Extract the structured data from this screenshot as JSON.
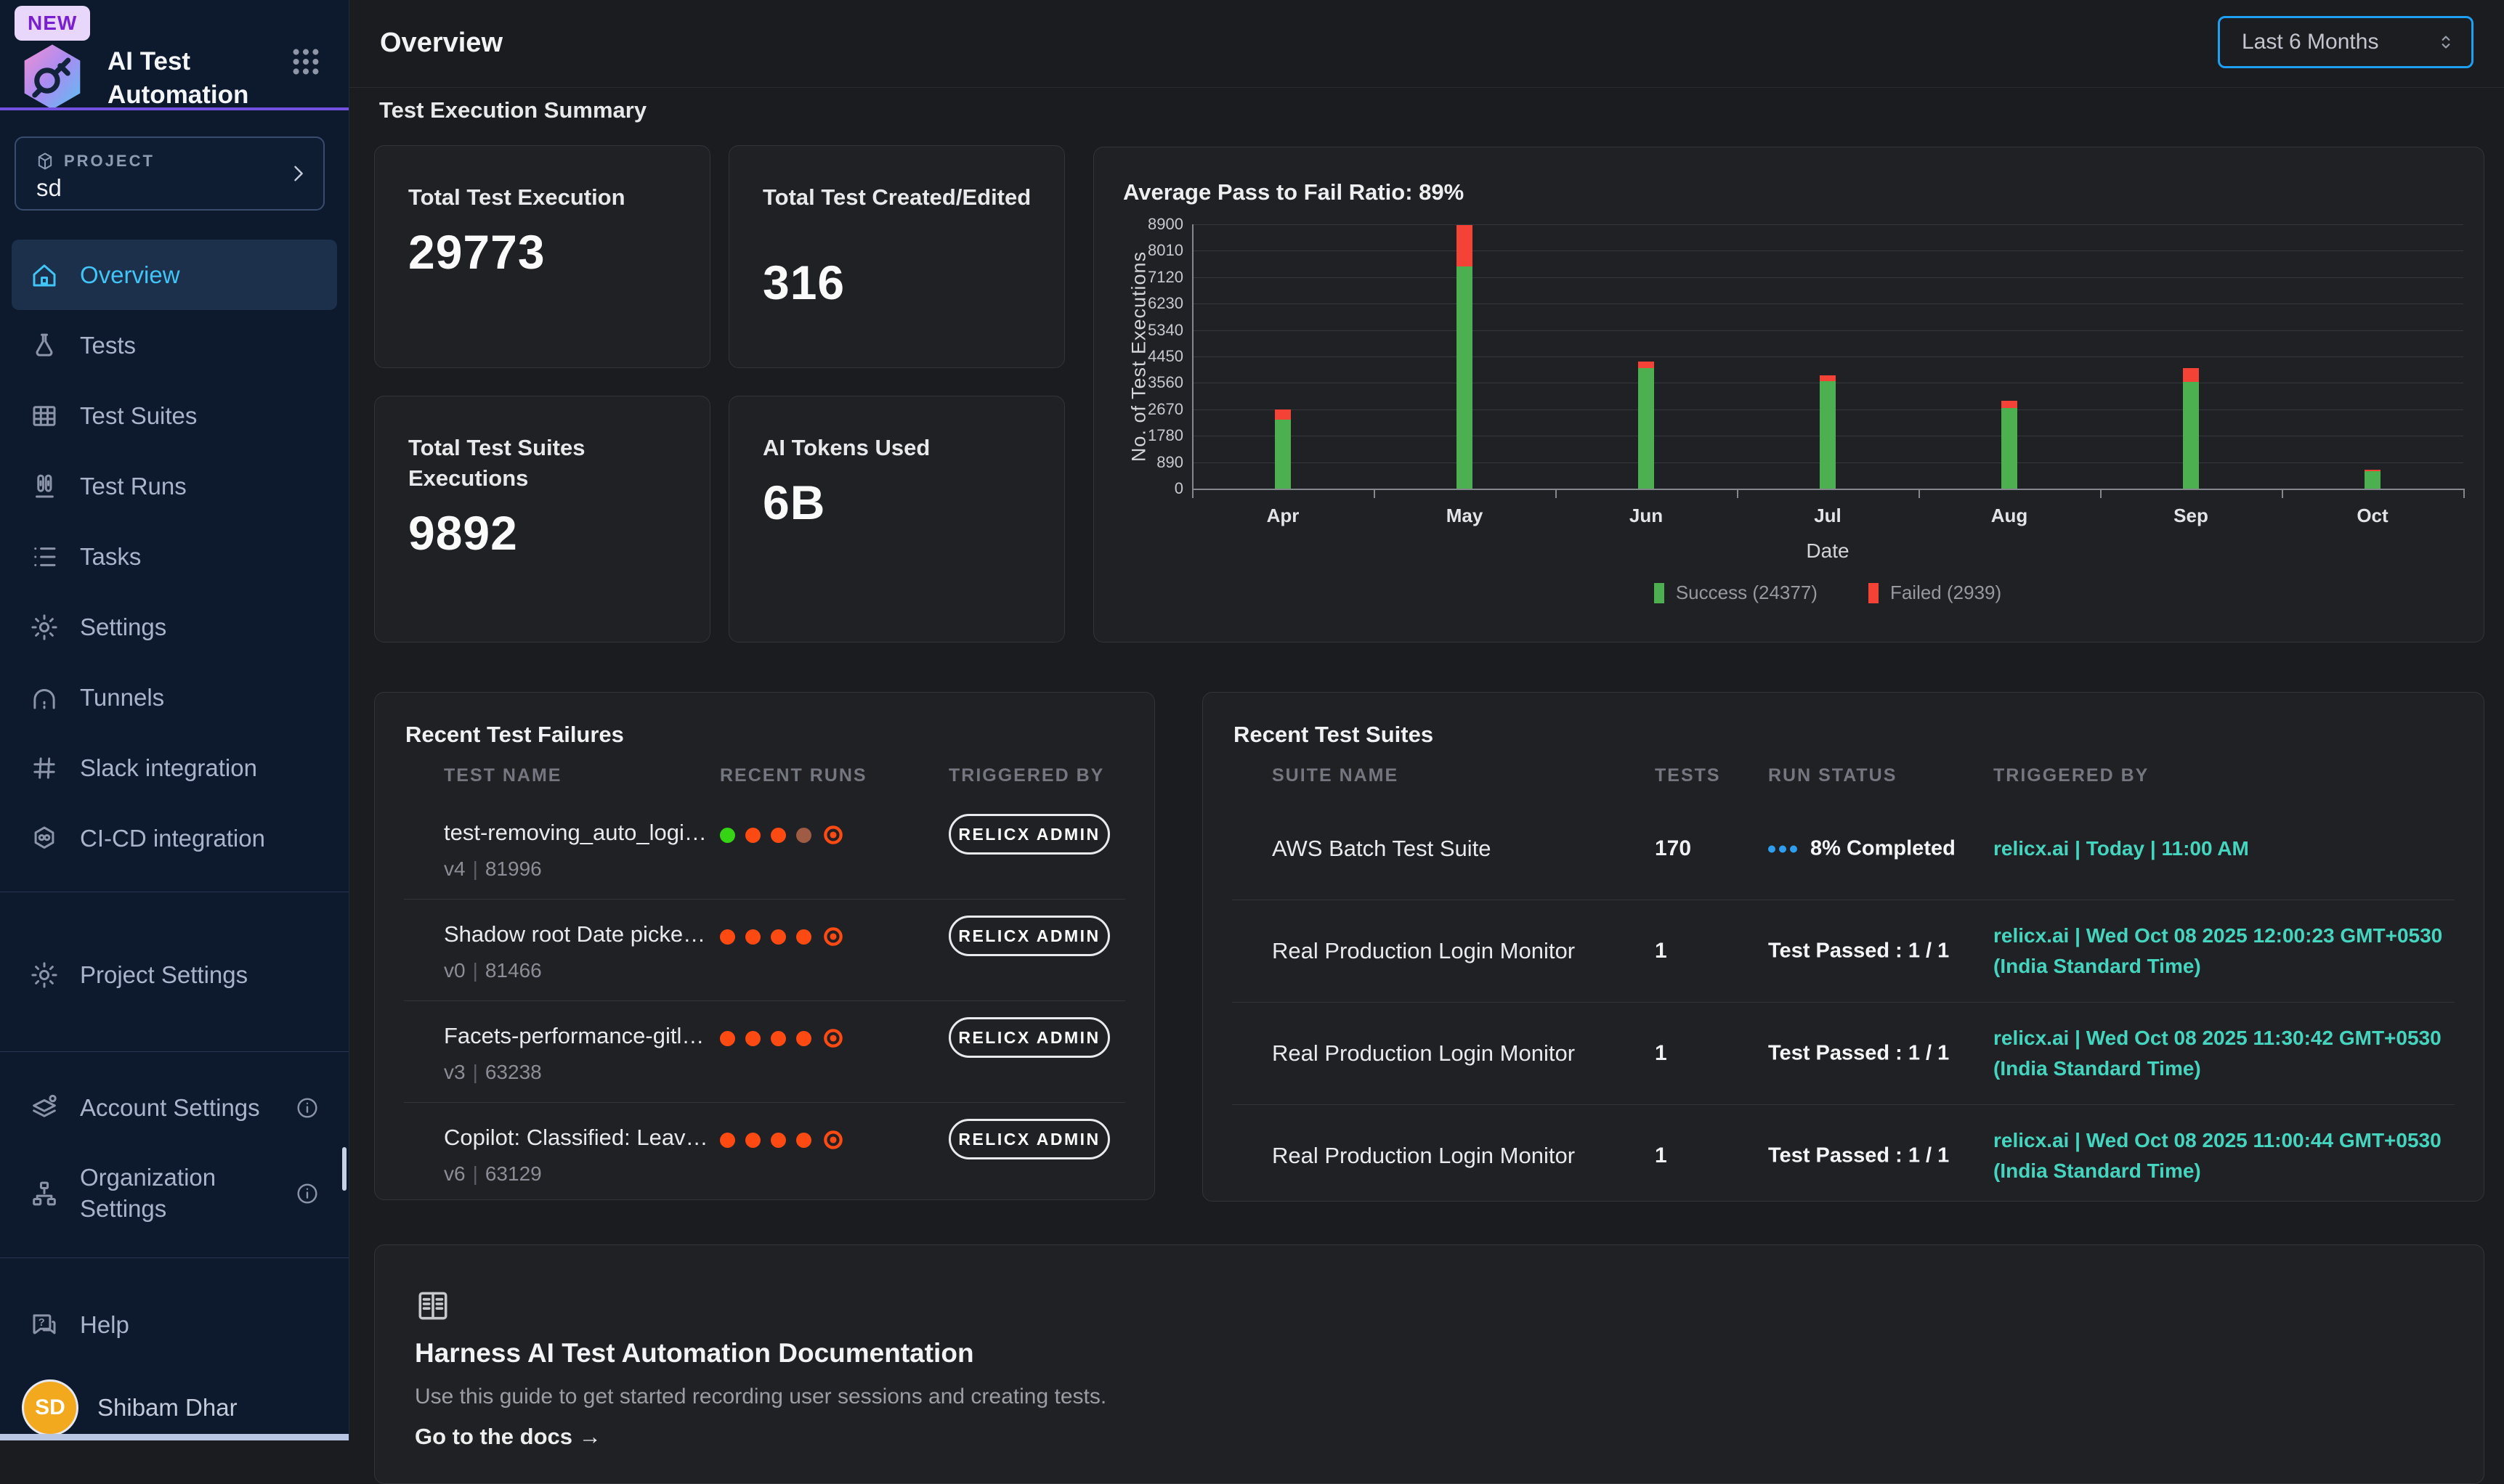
{
  "colors": {
    "accent_blue": "#1f9ff2",
    "active_nav": "#41c4f6",
    "purple_accent": "#7450e0",
    "success_green": "#4caf50",
    "failed_red": "#f44336",
    "run_passed": "#35d415",
    "run_failed": "#fd4a13",
    "run_aborted": "#a05b44",
    "teal_link": "#45d5bf",
    "avatar_orange": "#f2a91d"
  },
  "app": {
    "badge": "NEW",
    "title_line1": "AI Test",
    "title_line2": "Automation"
  },
  "sidebar": {
    "project_label": "PROJECT",
    "project_name": "sd",
    "nav": [
      {
        "label": "Overview",
        "icon": "home",
        "active": true
      },
      {
        "label": "Tests",
        "icon": "flask",
        "active": false
      },
      {
        "label": "Test Suites",
        "icon": "grid",
        "active": false
      },
      {
        "label": "Test Runs",
        "icon": "runs",
        "active": false
      },
      {
        "label": "Tasks",
        "icon": "tasks",
        "active": false
      },
      {
        "label": "Settings",
        "icon": "gear",
        "active": false
      },
      {
        "label": "Tunnels",
        "icon": "tunnel",
        "active": false
      },
      {
        "label": "Slack integration",
        "icon": "slack",
        "active": false
      },
      {
        "label": "CI-CD integration",
        "icon": "cicd",
        "active": false
      }
    ],
    "secondary": [
      {
        "label": "Project Settings",
        "icon": "gear"
      }
    ],
    "tertiary": [
      {
        "label": "Account Settings",
        "icon": "account",
        "info": true
      },
      {
        "label": "Organization Settings",
        "icon": "org",
        "info": true
      }
    ],
    "help_label": "Help",
    "user": {
      "initials": "SD",
      "name": "Shibam Dhar"
    }
  },
  "header": {
    "title": "Overview",
    "period": "Last 6 Months"
  },
  "summary": {
    "section_title": "Test Execution Summary",
    "stats": [
      {
        "label": "Total Test Execution",
        "value": "29773"
      },
      {
        "label": "Total Test Created/Edited",
        "value": "316"
      },
      {
        "label": "Total Test Suites Executions",
        "value": "9892"
      },
      {
        "label": "AI Tokens Used",
        "value": "6B"
      }
    ]
  },
  "chart_data": {
    "type": "bar",
    "stacked": true,
    "title": "Average Pass to Fail Ratio: 89%",
    "categories": [
      "Apr",
      "May",
      "Jun",
      "Jul",
      "Aug",
      "Sep",
      "Oct"
    ],
    "series": [
      {
        "name": "Success (24377)",
        "color": "#4caf50",
        "values": [
          2330,
          7490,
          4050,
          3620,
          2710,
          3590,
          587
        ]
      },
      {
        "name": "Failed (2939)",
        "color": "#f44336",
        "values": [
          340,
          1390,
          240,
          190,
          240,
          480,
          59
        ]
      }
    ],
    "xlabel": "Date",
    "ylabel": "No. of Test Executions",
    "ylim": [
      0,
      8900
    ],
    "yticks": [
      0,
      890,
      1780,
      2670,
      3560,
      4450,
      5340,
      6230,
      7120,
      8010,
      8900
    ],
    "grid": "horizontal",
    "legend_position": "bottom"
  },
  "failures": {
    "title": "Recent Test Failures",
    "columns": [
      "TEST NAME",
      "RECENT RUNS",
      "TRIGGERED BY"
    ],
    "rows": [
      {
        "name": "test-removing_auto_login...",
        "version": "v4",
        "id": "81996",
        "runs": [
          "passed",
          "failed",
          "failed",
          "aborted",
          "current"
        ],
        "triggered_by": "RELICX ADMIN"
      },
      {
        "name": "Shadow root Date picker ...",
        "version": "v0",
        "id": "81466",
        "runs": [
          "failed",
          "failed",
          "failed",
          "failed",
          "current"
        ],
        "triggered_by": "RELICX ADMIN"
      },
      {
        "name": "Facets-performance-gitla...",
        "version": "v3",
        "id": "63238",
        "runs": [
          "failed",
          "failed",
          "failed",
          "failed",
          "current"
        ],
        "triggered_by": "RELICX ADMIN"
      },
      {
        "name": "Copilot: Classified: Leave...",
        "version": "v6",
        "id": "63129",
        "runs": [
          "failed",
          "failed",
          "failed",
          "failed",
          "current"
        ],
        "triggered_by": "RELICX ADMIN"
      }
    ]
  },
  "suites": {
    "title": "Recent Test Suites",
    "columns": [
      "SUITE NAME",
      "TESTS",
      "RUN STATUS",
      "TRIGGERED BY"
    ],
    "rows": [
      {
        "name": "AWS Batch Test Suite",
        "tests": "170",
        "status": "8% Completed",
        "status_type": "running",
        "triggered_by": "relicx.ai | Today | 11:00 AM"
      },
      {
        "name": "Real Production Login Monitor",
        "tests": "1",
        "status": "Test Passed : 1 / 1",
        "status_type": "passed",
        "triggered_by": "relicx.ai | Wed Oct 08 2025 12:00:23 GMT+0530 (India Standard Time)"
      },
      {
        "name": "Real Production Login Monitor",
        "tests": "1",
        "status": "Test Passed : 1 / 1",
        "status_type": "passed",
        "triggered_by": "relicx.ai | Wed Oct 08 2025 11:30:42 GMT+0530 (India Standard Time)"
      },
      {
        "name": "Real Production Login Monitor",
        "tests": "1",
        "status": "Test Passed : 1 / 1",
        "status_type": "passed",
        "triggered_by": "relicx.ai | Wed Oct 08 2025 11:00:44 GMT+0530 (India Standard Time)"
      }
    ]
  },
  "docs": {
    "title": "Harness AI Test Automation Documentation",
    "subtitle": "Use this guide to get started recording user sessions and creating tests.",
    "link_label": "Go to the docs →"
  }
}
